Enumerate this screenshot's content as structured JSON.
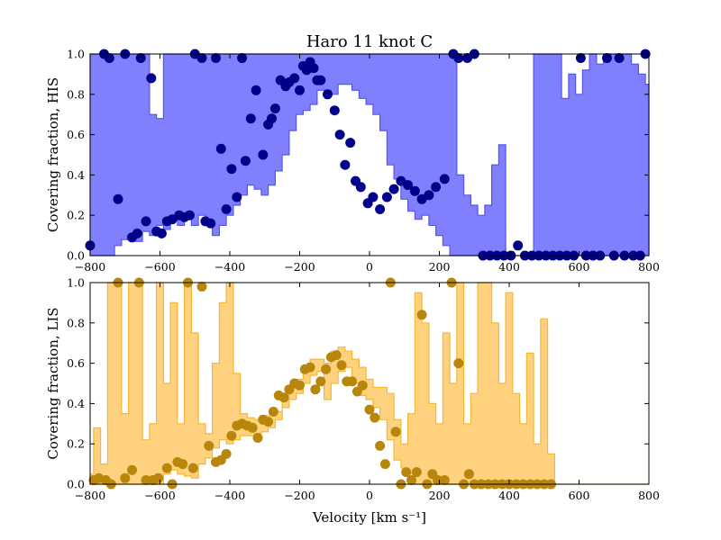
{
  "title": "Haro 11 knot C",
  "xlabel": "Velocity [km s⁻¹]",
  "chart_data": [
    {
      "type": "area",
      "ylabel": "Covering fraction, HIS",
      "xlim": [
        -800,
        800
      ],
      "ylim": [
        0,
        1.0
      ],
      "xticks": [
        -800,
        -600,
        -400,
        -200,
        0,
        200,
        400,
        600,
        800
      ],
      "yticks": [
        0.0,
        0.2,
        0.4,
        0.6,
        0.8,
        1.0
      ],
      "colors": {
        "band": "#8080ff",
        "band_edge": "#5555ee",
        "point": "#00008b"
      },
      "band": {
        "x": [
          -800,
          -780,
          -760,
          -740,
          -720,
          -700,
          -680,
          -660,
          -640,
          -620,
          -600,
          -580,
          -560,
          -540,
          -520,
          -500,
          -480,
          -460,
          -440,
          -420,
          -400,
          -380,
          -360,
          -340,
          -320,
          -300,
          -280,
          -260,
          -240,
          -220,
          -200,
          -180,
          -160,
          -140,
          -120,
          -100,
          -80,
          -60,
          -40,
          -20,
          0,
          20,
          40,
          60,
          80,
          100,
          120,
          140,
          160,
          180,
          200,
          220,
          240,
          260,
          280,
          300,
          320,
          340,
          360,
          380,
          400,
          420,
          440,
          460,
          480,
          500,
          520,
          540,
          560,
          580,
          600,
          620,
          640,
          660,
          680,
          700,
          720,
          740,
          760,
          780,
          800
        ],
        "lower": [
          0.0,
          0.0,
          0.0,
          0.0,
          0.05,
          0.08,
          0.1,
          0.07,
          0.12,
          0.1,
          0.15,
          0.13,
          0.2,
          0.15,
          0.18,
          0.15,
          0.2,
          0.15,
          0.1,
          0.15,
          0.2,
          0.25,
          0.3,
          0.35,
          0.33,
          0.3,
          0.35,
          0.42,
          0.5,
          0.62,
          0.7,
          0.72,
          0.75,
          0.82,
          0.82,
          0.8,
          0.85,
          0.85,
          0.82,
          0.78,
          0.75,
          0.7,
          0.62,
          0.45,
          0.38,
          0.28,
          0.22,
          0.18,
          0.2,
          0.15,
          0.1,
          0.05,
          0.0,
          0.0,
          0.0,
          0.0,
          0.0,
          0.0,
          0.0,
          0.0,
          0.0,
          0.0,
          0.0,
          0.0,
          0.0,
          0.0,
          0.0,
          0.0,
          0.0,
          0.0,
          0.0,
          0.0,
          0.0,
          0.0,
          0.0,
          0.0,
          0.0,
          0.0,
          0.0,
          0.0,
          0.0
        ],
        "upper": [
          1.0,
          1.0,
          1.0,
          1.0,
          1.0,
          1.0,
          1.0,
          1.0,
          1.0,
          0.7,
          0.68,
          1.0,
          1.0,
          1.0,
          1.0,
          1.0,
          1.0,
          1.0,
          1.0,
          1.0,
          1.0,
          1.0,
          1.0,
          1.0,
          1.0,
          1.0,
          1.0,
          1.0,
          1.0,
          1.0,
          1.0,
          1.0,
          1.0,
          1.0,
          1.0,
          1.0,
          1.0,
          1.0,
          1.0,
          1.0,
          1.0,
          1.0,
          1.0,
          1.0,
          1.0,
          1.0,
          1.0,
          1.0,
          1.0,
          1.0,
          1.0,
          1.0,
          1.0,
          0.4,
          0.3,
          0.25,
          0.2,
          0.25,
          0.45,
          0.55,
          0.0,
          0.0,
          0.0,
          0.0,
          1.0,
          1.0,
          1.0,
          1.0,
          0.78,
          0.9,
          0.8,
          0.92,
          1.0,
          0.95,
          1.0,
          1.0,
          1.0,
          1.0,
          0.95,
          0.9,
          0.85
        ],
        "note": ""
      },
      "points": [
        {
          "x": -800,
          "y": 0.05
        },
        {
          "x": -760,
          "y": 1.0
        },
        {
          "x": -745,
          "y": 0.98
        },
        {
          "x": -720,
          "y": 0.28
        },
        {
          "x": -700,
          "y": 1.0
        },
        {
          "x": -680,
          "y": 0.09
        },
        {
          "x": -665,
          "y": 0.11
        },
        {
          "x": -655,
          "y": 0.98
        },
        {
          "x": -640,
          "y": 0.17
        },
        {
          "x": -625,
          "y": 0.88
        },
        {
          "x": -610,
          "y": 0.12
        },
        {
          "x": -595,
          "y": 0.11
        },
        {
          "x": -580,
          "y": 0.17
        },
        {
          "x": -565,
          "y": 0.18
        },
        {
          "x": -545,
          "y": 0.2
        },
        {
          "x": -530,
          "y": 0.19
        },
        {
          "x": -515,
          "y": 0.2
        },
        {
          "x": -500,
          "y": 1.0
        },
        {
          "x": -480,
          "y": 0.98
        },
        {
          "x": -470,
          "y": 0.17
        },
        {
          "x": -455,
          "y": 0.16
        },
        {
          "x": -440,
          "y": 0.98
        },
        {
          "x": -425,
          "y": 0.53
        },
        {
          "x": -410,
          "y": 0.23
        },
        {
          "x": -395,
          "y": 0.43
        },
        {
          "x": -380,
          "y": 0.29
        },
        {
          "x": -365,
          "y": 0.98
        },
        {
          "x": -355,
          "y": 0.47
        },
        {
          "x": -340,
          "y": 0.68
        },
        {
          "x": -325,
          "y": 0.82
        },
        {
          "x": -305,
          "y": 0.5
        },
        {
          "x": -290,
          "y": 0.65
        },
        {
          "x": -280,
          "y": 0.68
        },
        {
          "x": -270,
          "y": 0.73
        },
        {
          "x": -255,
          "y": 0.87
        },
        {
          "x": -240,
          "y": 0.84
        },
        {
          "x": -230,
          "y": 0.86
        },
        {
          "x": -215,
          "y": 0.88
        },
        {
          "x": -200,
          "y": 0.82
        },
        {
          "x": -190,
          "y": 0.94
        },
        {
          "x": -180,
          "y": 0.92
        },
        {
          "x": -170,
          "y": 0.96
        },
        {
          "x": -160,
          "y": 0.93
        },
        {
          "x": -150,
          "y": 0.87
        },
        {
          "x": -140,
          "y": 0.87
        },
        {
          "x": -120,
          "y": 0.8
        },
        {
          "x": -100,
          "y": 0.72
        },
        {
          "x": -85,
          "y": 0.6
        },
        {
          "x": -70,
          "y": 0.45
        },
        {
          "x": -55,
          "y": 0.56
        },
        {
          "x": -40,
          "y": 0.37
        },
        {
          "x": -25,
          "y": 0.34
        },
        {
          "x": -5,
          "y": 0.26
        },
        {
          "x": 10,
          "y": 0.29
        },
        {
          "x": 30,
          "y": 0.23
        },
        {
          "x": 50,
          "y": 0.29
        },
        {
          "x": 70,
          "y": 0.33
        },
        {
          "x": 90,
          "y": 0.37
        },
        {
          "x": 110,
          "y": 0.35
        },
        {
          "x": 130,
          "y": 0.32
        },
        {
          "x": 150,
          "y": 0.28
        },
        {
          "x": 170,
          "y": 0.3
        },
        {
          "x": 190,
          "y": 0.34
        },
        {
          "x": 215,
          "y": 0.38
        },
        {
          "x": 240,
          "y": 1.0
        },
        {
          "x": 255,
          "y": 0.98
        },
        {
          "x": 280,
          "y": 0.98
        },
        {
          "x": 300,
          "y": 1.0
        },
        {
          "x": 325,
          "y": 0.0
        },
        {
          "x": 345,
          "y": 0.0
        },
        {
          "x": 365,
          "y": 0.0
        },
        {
          "x": 385,
          "y": 0.0
        },
        {
          "x": 405,
          "y": 0.0
        },
        {
          "x": 425,
          "y": 0.05
        },
        {
          "x": 445,
          "y": 0.0
        },
        {
          "x": 465,
          "y": 0.0
        },
        {
          "x": 485,
          "y": 0.0
        },
        {
          "x": 505,
          "y": 0.0
        },
        {
          "x": 525,
          "y": 0.0
        },
        {
          "x": 545,
          "y": 0.0
        },
        {
          "x": 565,
          "y": 0.0
        },
        {
          "x": 585,
          "y": 0.0
        },
        {
          "x": 605,
          "y": 0.98
        },
        {
          "x": 620,
          "y": 0.0
        },
        {
          "x": 640,
          "y": 0.0
        },
        {
          "x": 660,
          "y": 0.0
        },
        {
          "x": 680,
          "y": 0.98
        },
        {
          "x": 700,
          "y": 0.0
        },
        {
          "x": 715,
          "y": 0.98
        },
        {
          "x": 730,
          "y": 0.0
        },
        {
          "x": 755,
          "y": 0.0
        },
        {
          "x": 775,
          "y": 0.0
        },
        {
          "x": 790,
          "y": 1.0
        }
      ]
    },
    {
      "type": "area",
      "ylabel": "Covering fraction, LIS",
      "xlim": [
        -800,
        800
      ],
      "ylim": [
        0,
        1.0
      ],
      "xticks": [
        -800,
        -600,
        -400,
        -200,
        0,
        200,
        400,
        600,
        800
      ],
      "yticks": [
        0.0,
        0.2,
        0.4,
        0.6,
        0.8,
        1.0
      ],
      "colors": {
        "band": "#ffd27f",
        "band_edge": "#f7b733",
        "point": "#b8860b"
      },
      "band": {
        "x": [
          -800,
          -780,
          -760,
          -740,
          -720,
          -700,
          -680,
          -660,
          -640,
          -620,
          -600,
          -580,
          -560,
          -540,
          -520,
          -500,
          -480,
          -460,
          -440,
          -420,
          -400,
          -380,
          -360,
          -340,
          -320,
          -300,
          -280,
          -260,
          -240,
          -220,
          -200,
          -180,
          -160,
          -140,
          -120,
          -100,
          -80,
          -60,
          -40,
          -20,
          0,
          20,
          40,
          60,
          80,
          100,
          120,
          140,
          160,
          180,
          200,
          220,
          240,
          260,
          280,
          300,
          320,
          340,
          360,
          380,
          400,
          420,
          440,
          460,
          480,
          500,
          520,
          540,
          560,
          580,
          600,
          620,
          640,
          660,
          680,
          700,
          720,
          740,
          760,
          780,
          800
        ],
        "lower": [
          0.0,
          0.0,
          0.0,
          0.0,
          0.0,
          0.0,
          0.0,
          0.0,
          0.0,
          0.0,
          0.0,
          0.05,
          0.07,
          0.05,
          0.04,
          0.03,
          0.1,
          0.13,
          0.18,
          0.22,
          0.2,
          0.22,
          0.24,
          0.24,
          0.22,
          0.26,
          0.28,
          0.32,
          0.38,
          0.42,
          0.45,
          0.5,
          0.54,
          0.56,
          0.42,
          0.5,
          0.56,
          0.58,
          0.5,
          0.44,
          0.42,
          0.38,
          0.32,
          0.22,
          0.12,
          0.08,
          0.05,
          0.0,
          0.0,
          0.0,
          0.0,
          0.0,
          0.0,
          0.0,
          0.0,
          0.0,
          0.0,
          0.0,
          0.0,
          0.0,
          0.0,
          0.0,
          0.0,
          0.0,
          0.0,
          0.0,
          0.0,
          0.0,
          0.0,
          0.0,
          0.0,
          0.0,
          0.0,
          0.0,
          0.0,
          0.0,
          0.0,
          0.0,
          0.0,
          0.0,
          0.0
        ],
        "upper": [
          0.05,
          0.28,
          0.1,
          1.0,
          1.0,
          0.35,
          1.0,
          1.0,
          0.22,
          0.3,
          1.0,
          0.5,
          0.9,
          0.3,
          1.0,
          0.75,
          0.3,
          0.25,
          0.6,
          0.9,
          1.0,
          0.55,
          0.35,
          0.33,
          0.32,
          0.34,
          0.34,
          0.36,
          0.44,
          0.48,
          0.52,
          0.58,
          0.62,
          0.62,
          0.6,
          0.66,
          0.68,
          0.66,
          0.62,
          0.58,
          0.52,
          0.48,
          0.48,
          0.45,
          0.32,
          0.2,
          0.35,
          0.95,
          0.8,
          0.4,
          0.3,
          0.75,
          0.5,
          1.0,
          0.3,
          0.45,
          1.0,
          1.0,
          0.8,
          0.5,
          0.95,
          0.45,
          0.3,
          0.65,
          0.2,
          0.82,
          0.15,
          0.0,
          0.0,
          0.0,
          0.0,
          0.0,
          0.0,
          0.0,
          0.0,
          0.0,
          0.0,
          0.0,
          0.0,
          0.0,
          0.0
        ],
        "note": ""
      },
      "points": [
        {
          "x": -790,
          "y": 0.02
        },
        {
          "x": -775,
          "y": 0.03
        },
        {
          "x": -755,
          "y": 0.02
        },
        {
          "x": -740,
          "y": 0.0
        },
        {
          "x": -720,
          "y": 1.0
        },
        {
          "x": -700,
          "y": 0.03
        },
        {
          "x": -680,
          "y": 0.07
        },
        {
          "x": -660,
          "y": 1.0
        },
        {
          "x": -640,
          "y": 0.02
        },
        {
          "x": -620,
          "y": 0.02
        },
        {
          "x": -605,
          "y": 0.03
        },
        {
          "x": -580,
          "y": 0.08
        },
        {
          "x": -565,
          "y": 0.0
        },
        {
          "x": -550,
          "y": 0.11
        },
        {
          "x": -535,
          "y": 0.1
        },
        {
          "x": -520,
          "y": 1.0
        },
        {
          "x": -505,
          "y": 0.08
        },
        {
          "x": -480,
          "y": 0.98
        },
        {
          "x": -460,
          "y": 0.19
        },
        {
          "x": -440,
          "y": 0.11
        },
        {
          "x": -425,
          "y": 0.12
        },
        {
          "x": -410,
          "y": 0.15
        },
        {
          "x": -395,
          "y": 0.24
        },
        {
          "x": -380,
          "y": 0.29
        },
        {
          "x": -365,
          "y": 0.3
        },
        {
          "x": -350,
          "y": 0.29
        },
        {
          "x": -335,
          "y": 0.28
        },
        {
          "x": -320,
          "y": 0.23
        },
        {
          "x": -305,
          "y": 0.32
        },
        {
          "x": -290,
          "y": 0.31
        },
        {
          "x": -275,
          "y": 0.36
        },
        {
          "x": -260,
          "y": 0.44
        },
        {
          "x": -245,
          "y": 0.43
        },
        {
          "x": -230,
          "y": 0.47
        },
        {
          "x": -215,
          "y": 0.5
        },
        {
          "x": -200,
          "y": 0.49
        },
        {
          "x": -185,
          "y": 0.57
        },
        {
          "x": -170,
          "y": 0.58
        },
        {
          "x": -155,
          "y": 0.47
        },
        {
          "x": -140,
          "y": 0.51
        },
        {
          "x": -125,
          "y": 0.57
        },
        {
          "x": -110,
          "y": 0.63
        },
        {
          "x": -95,
          "y": 0.64
        },
        {
          "x": -80,
          "y": 0.59
        },
        {
          "x": -65,
          "y": 0.51
        },
        {
          "x": -50,
          "y": 0.51
        },
        {
          "x": -35,
          "y": 0.46
        },
        {
          "x": -20,
          "y": 0.49
        },
        {
          "x": 0,
          "y": 0.37
        },
        {
          "x": 15,
          "y": 0.33
        },
        {
          "x": 30,
          "y": 0.19
        },
        {
          "x": 45,
          "y": 0.1
        },
        {
          "x": 60,
          "y": 1.0
        },
        {
          "x": 75,
          "y": 0.26
        },
        {
          "x": 90,
          "y": 0.0
        },
        {
          "x": 105,
          "y": 0.06
        },
        {
          "x": 120,
          "y": 0.02
        },
        {
          "x": 135,
          "y": 0.06
        },
        {
          "x": 150,
          "y": 0.84
        },
        {
          "x": 165,
          "y": 0.0
        },
        {
          "x": 180,
          "y": 0.05
        },
        {
          "x": 195,
          "y": 0.02
        },
        {
          "x": 215,
          "y": 0.02
        },
        {
          "x": 235,
          "y": 1.0
        },
        {
          "x": 255,
          "y": 0.6
        },
        {
          "x": 270,
          "y": 0.0
        },
        {
          "x": 285,
          "y": 0.05
        },
        {
          "x": 300,
          "y": 0.0
        },
        {
          "x": 320,
          "y": 0.0
        },
        {
          "x": 340,
          "y": 0.0
        },
        {
          "x": 360,
          "y": 0.0
        },
        {
          "x": 380,
          "y": 0.0
        },
        {
          "x": 400,
          "y": 0.0
        },
        {
          "x": 420,
          "y": 0.0
        },
        {
          "x": 440,
          "y": 0.0
        },
        {
          "x": 460,
          "y": 0.0
        },
        {
          "x": 480,
          "y": 0.0
        },
        {
          "x": 500,
          "y": 0.0
        },
        {
          "x": 520,
          "y": 0.0
        }
      ]
    }
  ]
}
